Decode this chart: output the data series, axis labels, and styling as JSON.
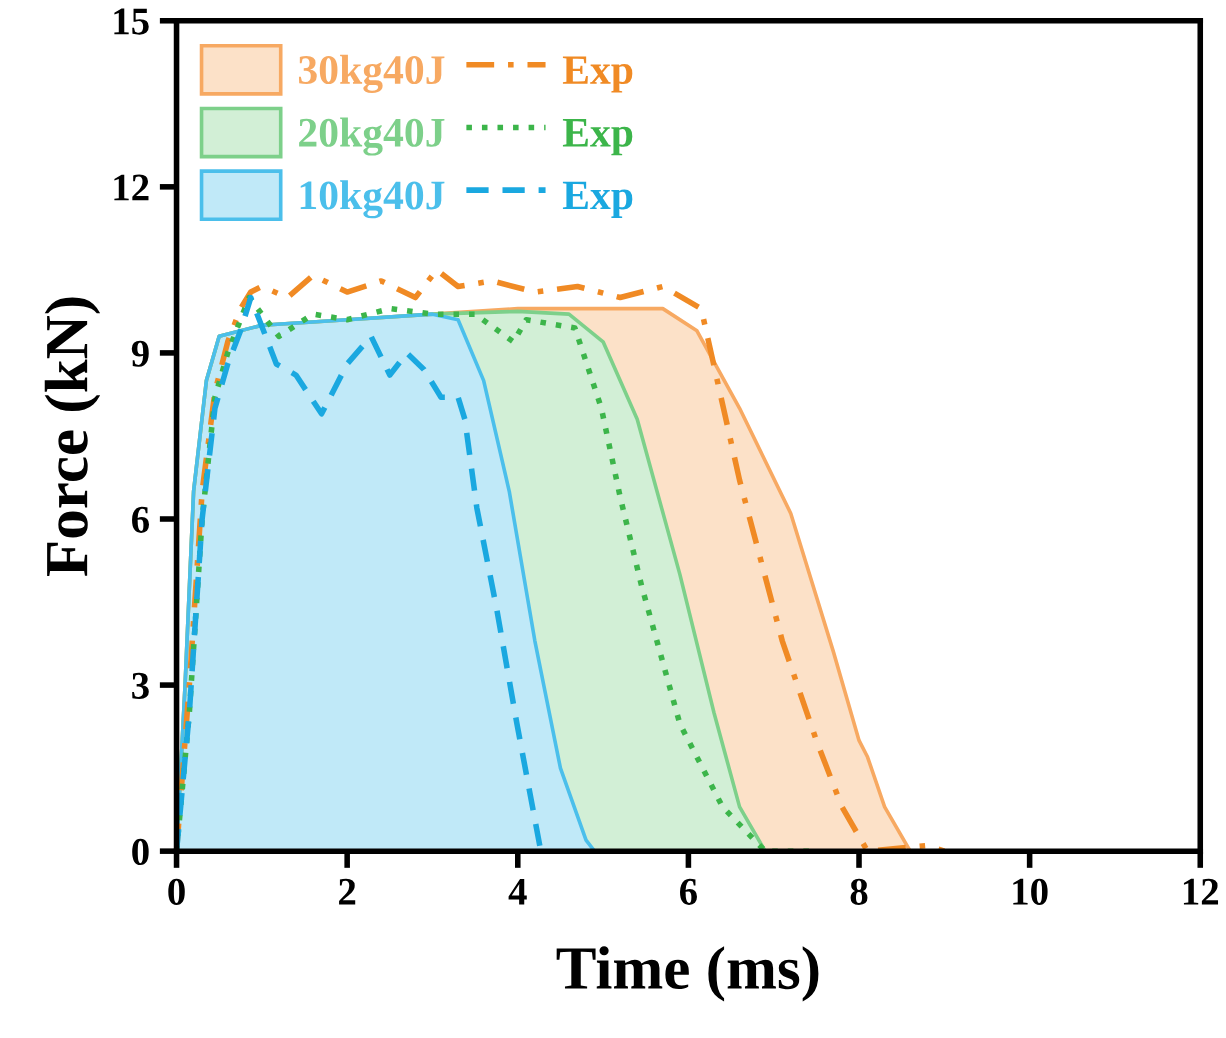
{
  "chart_data": {
    "type": "area",
    "xlabel": "Time (ms)",
    "ylabel": "Force (kN)",
    "xlim": [
      0,
      12
    ],
    "ylim": [
      0,
      15
    ],
    "xticks": [
      0,
      2,
      4,
      6,
      8,
      10,
      12
    ],
    "yticks": [
      0,
      3,
      6,
      9,
      12,
      15
    ],
    "grid": false,
    "legend": "top left",
    "series": [
      {
        "name": "30kg40J",
        "color": "#f7a962",
        "x": [
          0,
          0.1,
          0.2,
          0.35,
          0.5,
          1,
          2,
          3,
          4,
          5,
          5.7,
          6.1,
          6.6,
          7.2,
          7.7,
          8.0,
          8.1,
          8.3,
          8.6
        ],
        "values": [
          0,
          3,
          6.5,
          8.5,
          9.3,
          9.5,
          9.6,
          9.7,
          9.8,
          9.8,
          9.8,
          9.4,
          8.0,
          6.1,
          3.6,
          2.0,
          1.7,
          0.8,
          0
        ]
      },
      {
        "name": "20kg40J",
        "color": "#7dd08a",
        "x": [
          0,
          0.1,
          0.2,
          0.35,
          0.5,
          1,
          2,
          3,
          4,
          4.6,
          5.0,
          5.4,
          5.9,
          6.3,
          6.6,
          6.9
        ],
        "values": [
          0,
          3,
          6.5,
          8.5,
          9.3,
          9.5,
          9.6,
          9.7,
          9.75,
          9.7,
          9.2,
          7.8,
          5.0,
          2.5,
          0.8,
          0
        ]
      },
      {
        "name": "10kg40J",
        "color": "#4bbfeb",
        "x": [
          0,
          0.1,
          0.2,
          0.35,
          0.5,
          1,
          2,
          3,
          3.3,
          3.6,
          3.9,
          4.2,
          4.5,
          4.8,
          4.9
        ],
        "values": [
          0,
          3,
          6.5,
          8.5,
          9.3,
          9.5,
          9.6,
          9.7,
          9.6,
          8.5,
          6.5,
          3.8,
          1.5,
          0.2,
          0
        ]
      },
      {
        "name": "Exp",
        "type": "line",
        "line_style": "dashdot",
        "color": "#f08a24",
        "x": [
          0,
          0.15,
          0.3,
          0.45,
          0.6,
          0.75,
          0.87,
          1.0,
          1.3,
          1.6,
          2.0,
          2.4,
          2.8,
          3.05,
          3.3,
          3.7,
          4.2,
          4.7,
          5.2,
          5.7,
          6.15,
          6.6,
          7.1,
          7.5,
          7.8,
          8.1,
          8.8,
          9.0
        ],
        "values": [
          0,
          3,
          6.5,
          8.3,
          9.2,
          9.8,
          10.1,
          10.2,
          10.0,
          10.4,
          10.1,
          10.3,
          10.0,
          10.5,
          10.2,
          10.3,
          10.1,
          10.2,
          10.0,
          10.2,
          9.8,
          6.7,
          3.8,
          2.0,
          0.8,
          0,
          0.1,
          0
        ]
      },
      {
        "name": "Exp",
        "type": "line",
        "line_style": "dotted",
        "color": "#3cb54a",
        "x": [
          0,
          0.15,
          0.3,
          0.45,
          0.6,
          0.75,
          0.85,
          1.2,
          1.6,
          2.0,
          2.5,
          3.0,
          3.5,
          3.95,
          4.1,
          4.67,
          4.98,
          5.2,
          5.45,
          5.9,
          6.4,
          6.9,
          7.5
        ],
        "values": [
          0,
          2.5,
          6,
          8.2,
          9.0,
          9.6,
          10.0,
          9.3,
          9.7,
          9.6,
          9.8,
          9.7,
          9.7,
          9.2,
          9.6,
          9.45,
          8.0,
          6.4,
          4.8,
          2.3,
          0.8,
          0,
          0
        ]
      },
      {
        "name": "Exp",
        "type": "line",
        "line_style": "dashed",
        "color": "#1aa8e0",
        "x": [
          0,
          0.15,
          0.3,
          0.45,
          0.6,
          0.75,
          0.87,
          1.17,
          1.4,
          1.7,
          2.0,
          2.28,
          2.5,
          2.7,
          2.9,
          3.1,
          3.3,
          3.38,
          3.52,
          3.75,
          3.99,
          4.27
        ],
        "values": [
          0,
          2.5,
          6,
          8.0,
          8.8,
          9.4,
          10.0,
          8.8,
          8.6,
          7.9,
          8.8,
          9.3,
          8.6,
          9.0,
          8.7,
          8.2,
          8.2,
          7.8,
          6.2,
          4.4,
          2.3,
          0
        ]
      }
    ]
  }
}
